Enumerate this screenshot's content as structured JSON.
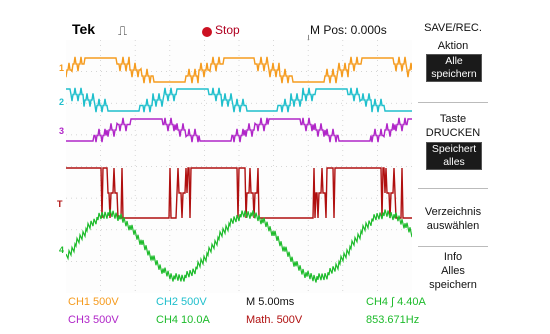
{
  "header": {
    "brand": "Tek",
    "trigger_symbol": "⎍",
    "status": "Stop",
    "mpos": "M Pos: 0.000s",
    "marker": "↓"
  },
  "side_menu": {
    "title": "SAVE/REC.",
    "aktion_label": "Aktion",
    "aktion_value": [
      "Alle",
      "speichern"
    ],
    "taste_label": [
      "Taste",
      "DRUCKEN"
    ],
    "taste_value": [
      "Speichert",
      "alles"
    ],
    "verzeichnis": [
      "Verzeichnis",
      "auswählen"
    ],
    "info": [
      "Info",
      "Alles",
      "speichern"
    ]
  },
  "channel_markers": [
    "1",
    "2",
    "3",
    "T",
    "4"
  ],
  "bottom": {
    "ch1": "CH1  500V",
    "ch2": "CH2  500V",
    "mtime": "M 5.00ms",
    "trig": "CH4 ∫ 4.40A",
    "ch3": "CH3  500V",
    "ch4": "CH4  10.0A",
    "math": "Math. 500V",
    "freq": "853.671Hz"
  },
  "colors": {
    "ch1": "#f59b1e",
    "ch2": "#1fbfcc",
    "ch3": "#b026c8",
    "math": "#b01010",
    "ch4": "#1dbb2b"
  }
}
